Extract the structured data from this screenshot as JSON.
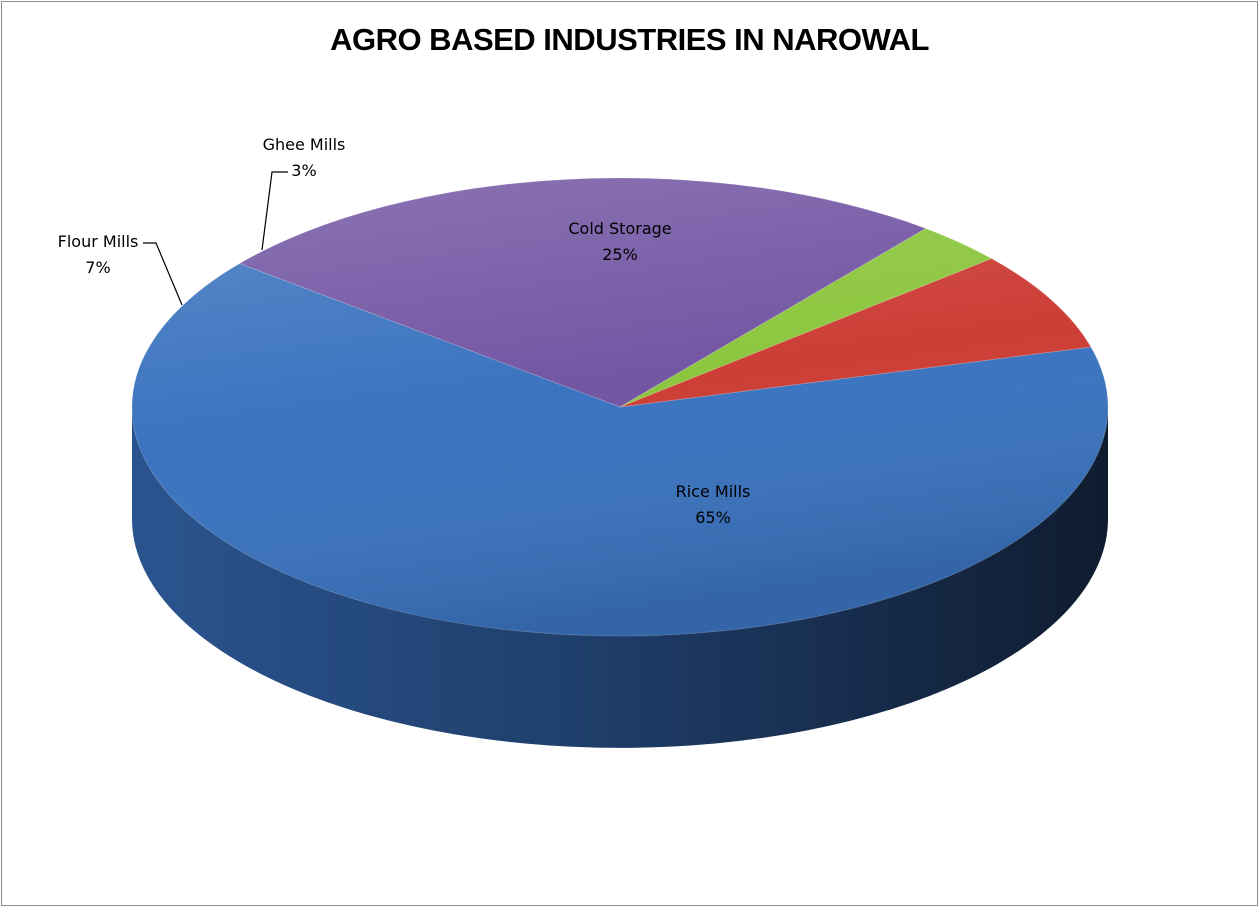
{
  "chart_data": {
    "type": "pie",
    "title": "AGRO BASED INDUSTRIES IN NAROWAL",
    "three_d": true,
    "slices": [
      {
        "label": "Rice Mills",
        "value": 65,
        "value_label": "65%",
        "color": "#3a73bf"
      },
      {
        "label": "Cold Storage",
        "value": 25,
        "value_label": "25%",
        "color": "#7356a3"
      },
      {
        "label": "Ghee Mills",
        "value": 3,
        "value_label": "3%",
        "color": "#8cc63e"
      },
      {
        "label": "Flour Mills",
        "value": 7,
        "value_label": "7%",
        "color": "#cc3e36"
      }
    ],
    "legend": "none",
    "data_labels": "category-and-percent"
  }
}
